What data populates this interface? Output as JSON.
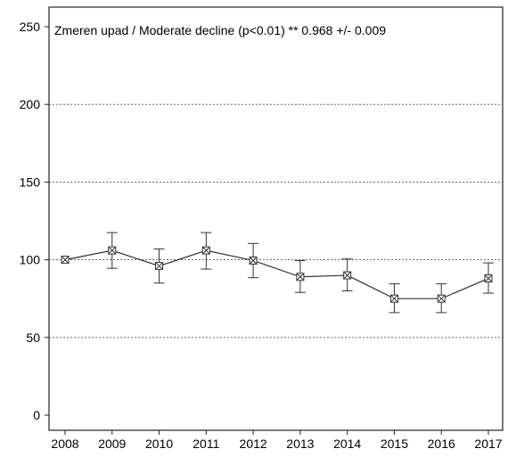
{
  "chart_data": {
    "type": "line",
    "annotation": "Zmeren upad / Moderate decline (p<0.01) **  0.968 +/- 0.009",
    "x": [
      "2008",
      "2009",
      "2010",
      "2011",
      "2012",
      "2013",
      "2014",
      "2015",
      "2016",
      "2017"
    ],
    "series": [
      {
        "values": [
          100,
          106,
          96,
          106,
          99.5,
          89,
          90,
          75,
          75,
          88
        ],
        "err_low": [
          100,
          94.5,
          85,
          94,
          88.5,
          79,
          80,
          66,
          66,
          78.5
        ],
        "err_high": [
          100,
          117.5,
          107,
          117.5,
          110.5,
          99.5,
          100.5,
          84.5,
          84.5,
          98
        ]
      }
    ],
    "ylim": [
      0,
      250
    ],
    "yticks": [
      0,
      50,
      100,
      150,
      200,
      250
    ],
    "dashed_gridlines_at": [
      50,
      100,
      150,
      200
    ],
    "colors": {
      "line": "#333333",
      "grid": "#555555",
      "frame": "#222222"
    }
  }
}
